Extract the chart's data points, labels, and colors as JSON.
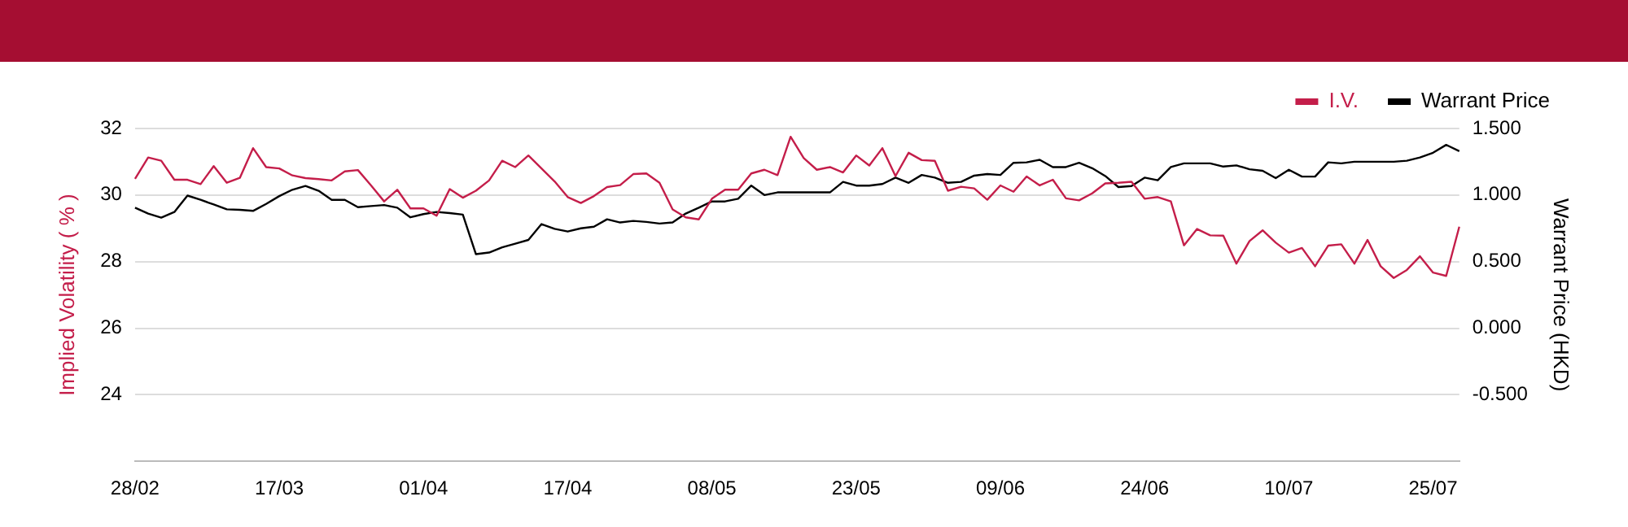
{
  "chart_data": {
    "type": "line",
    "categories": [
      "28/02",
      null,
      null,
      null,
      null,
      null,
      null,
      null,
      null,
      null,
      null,
      "17/03",
      null,
      null,
      null,
      null,
      null,
      null,
      null,
      null,
      null,
      null,
      "01/04",
      null,
      null,
      null,
      null,
      null,
      null,
      null,
      null,
      null,
      null,
      "17/04",
      null,
      null,
      null,
      null,
      null,
      null,
      null,
      null,
      null,
      null,
      "08/05",
      null,
      null,
      null,
      null,
      null,
      null,
      null,
      null,
      null,
      null,
      "23/05",
      null,
      null,
      null,
      null,
      null,
      null,
      null,
      null,
      null,
      null,
      "09/06",
      null,
      null,
      null,
      null,
      null,
      null,
      null,
      null,
      null,
      null,
      "24/06",
      null,
      null,
      null,
      null,
      null,
      null,
      null,
      null,
      null,
      null,
      "10/07",
      null,
      null,
      null,
      null,
      null,
      null,
      null,
      null,
      null,
      null,
      "25/07",
      null,
      null
    ],
    "series": [
      {
        "name": "I.V.",
        "color": "#c41e4a",
        "values": [
          30.49,
          31.13,
          31.03,
          30.46,
          30.46,
          30.33,
          30.87,
          30.37,
          30.52,
          31.41,
          30.84,
          30.8,
          30.59,
          30.51,
          30.48,
          30.44,
          30.71,
          30.75,
          30.29,
          29.81,
          30.16,
          29.6,
          29.6,
          29.38,
          30.18,
          29.92,
          30.13,
          30.44,
          31.03,
          30.84,
          31.19,
          30.8,
          30.41,
          29.94,
          29.76,
          29.97,
          30.24,
          30.3,
          30.63,
          30.65,
          30.37,
          29.57,
          29.33,
          29.27,
          29.89,
          30.16,
          30.16,
          30.65,
          30.76,
          30.6,
          31.75,
          31.11,
          30.76,
          30.84,
          30.68,
          31.19,
          30.89,
          31.41,
          30.57,
          31.27,
          31.05,
          31.03,
          30.13,
          30.25,
          30.2,
          29.86,
          30.29,
          30.1,
          30.56,
          30.29,
          30.46,
          29.9,
          29.84,
          30.05,
          30.35,
          30.37,
          30.4,
          29.89,
          29.94,
          29.81,
          28.49,
          28.98,
          28.79,
          28.78,
          27.94,
          28.62,
          28.94,
          28.57,
          28.27,
          28.41,
          27.86,
          28.48,
          28.52,
          27.94,
          28.65,
          27.86,
          27.51,
          27.75,
          28.16,
          27.67,
          27.57,
          29.05
        ]
      },
      {
        "name": "Warrant Price",
        "color": "#000000",
        "axis": "y2",
        "values": [
          0.905,
          0.861,
          0.83,
          0.873,
          0.996,
          0.964,
          0.929,
          0.893,
          0.889,
          0.881,
          0.933,
          0.992,
          1.04,
          1.068,
          1.032,
          0.964,
          0.964,
          0.909,
          0.917,
          0.925,
          0.905,
          0.833,
          0.857,
          0.873,
          0.865,
          0.853,
          0.556,
          0.568,
          0.607,
          0.635,
          0.663,
          0.782,
          0.746,
          0.726,
          0.75,
          0.762,
          0.818,
          0.794,
          0.806,
          0.798,
          0.786,
          0.794,
          0.861,
          0.905,
          0.952,
          0.952,
          0.972,
          1.071,
          1.0,
          1.02,
          1.02,
          1.02,
          1.02,
          1.02,
          1.099,
          1.071,
          1.071,
          1.083,
          1.131,
          1.092,
          1.151,
          1.131,
          1.092,
          1.099,
          1.146,
          1.158,
          1.151,
          1.242,
          1.246,
          1.265,
          1.21,
          1.21,
          1.242,
          1.202,
          1.143,
          1.06,
          1.068,
          1.131,
          1.111,
          1.21,
          1.238,
          1.238,
          1.238,
          1.214,
          1.223,
          1.194,
          1.182,
          1.127,
          1.19,
          1.139,
          1.139,
          1.246,
          1.238,
          1.25,
          1.25,
          1.25,
          1.25,
          1.258,
          1.282,
          1.318,
          1.377,
          1.33
        ]
      }
    ],
    "ylabel": "Implied Volatility ( % )",
    "y2label": "Warrant Price (HKD)",
    "ylim": [
      22,
      32
    ],
    "yticks": [
      24,
      26,
      28,
      30,
      32
    ],
    "y2lim": [
      -1,
      1.5
    ],
    "y2ticks": [
      {
        "value": -0.5,
        "label": "-0.500"
      },
      {
        "value": 0,
        "label": "0.000"
      },
      {
        "value": 0.5,
        "label": "0.500"
      },
      {
        "value": 1,
        "label": "1.000"
      },
      {
        "value": 1.5,
        "label": "1.500"
      }
    ],
    "grid": "y",
    "legend": "top right"
  }
}
